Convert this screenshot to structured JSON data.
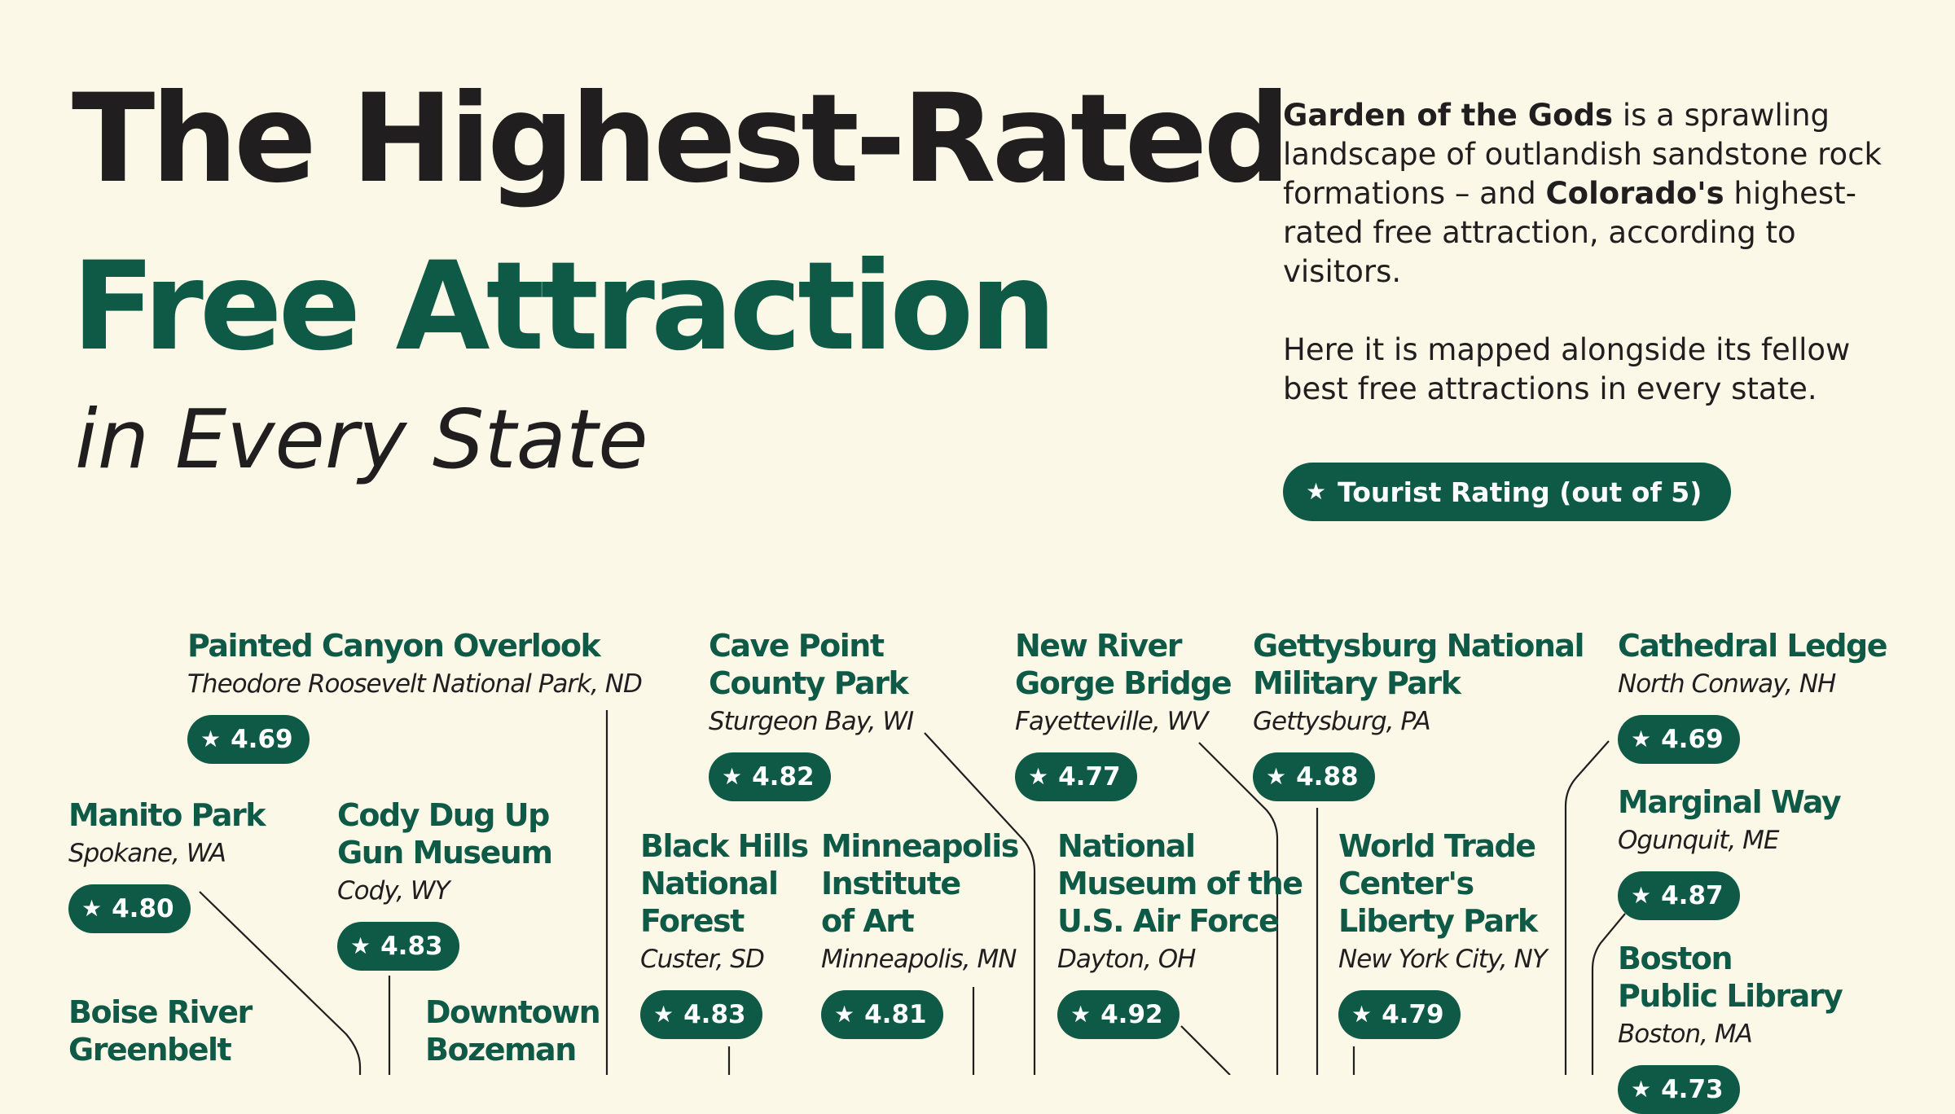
{
  "title": {
    "line1": "The Highest-Rated",
    "line2": "Free Attraction",
    "line3": "in Every State"
  },
  "intro": {
    "p1_bold1": "Garden of the Gods",
    "p1_text1": " is a sprawling landscape of outlandish sandstone rock formations – and ",
    "p1_bold2": "Colorado's",
    "p1_text2": " highest-rated free attraction, according to visitors.",
    "p2": "Here it is mapped alongside its fellow best free attractions in every state."
  },
  "legend": {
    "icon": "star-icon",
    "label": "Tourist Rating (out of 5)"
  },
  "colors": {
    "accent": "#0f5a47",
    "text": "#211e1f",
    "background": "#fcf8e8"
  },
  "attractions": [
    {
      "name": "Painted Canyon Overlook",
      "place": "Theodore Roosevelt National Park, ND",
      "rating": "4.69"
    },
    {
      "name": "Cave Point\nCounty Park",
      "place": "Sturgeon Bay, WI",
      "rating": "4.82"
    },
    {
      "name": "New River\nGorge Bridge",
      "place": "Fayetteville, WV",
      "rating": "4.77"
    },
    {
      "name": "Gettysburg National\nMilitary Park",
      "place": "Gettysburg, PA",
      "rating": "4.88"
    },
    {
      "name": "Cathedral Ledge",
      "place": "North Conway, NH",
      "rating": "4.69"
    },
    {
      "name": "Manito Park",
      "place": "Spokane, WA",
      "rating": "4.80"
    },
    {
      "name": "Cody Dug Up\nGun Museum",
      "place": "Cody, WY",
      "rating": "4.83"
    },
    {
      "name": "Black Hills\nNational\nForest",
      "place": "Custer, SD",
      "rating": "4.83"
    },
    {
      "name": "Minneapolis\nInstitute\nof Art",
      "place": "Minneapolis, MN",
      "rating": "4.81"
    },
    {
      "name": "National\nMuseum of the\nU.S. Air Force",
      "place": "Dayton, OH",
      "rating": "4.92"
    },
    {
      "name": "World Trade\nCenter's\nLiberty Park",
      "place": "New York City, NY",
      "rating": "4.79"
    },
    {
      "name": "Marginal Way",
      "place": "Ogunquit, ME",
      "rating": "4.87"
    },
    {
      "name": "Boston\nPublic Library",
      "place": "Boston, MA",
      "rating": "4.73"
    },
    {
      "name": "Boise River\nGreenbelt",
      "place": "",
      "rating": ""
    },
    {
      "name": "Downtown\nBozeman",
      "place": "",
      "rating": ""
    }
  ]
}
